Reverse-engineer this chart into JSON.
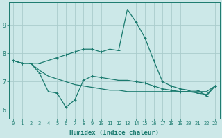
{
  "xlabel": "Humidex (Indice chaleur)",
  "bg_color": "#cce8e8",
  "grid_color": "#aacccc",
  "line_color": "#1a7a6e",
  "xlim": [
    -0.5,
    23.5
  ],
  "ylim": [
    5.7,
    9.8
  ],
  "xticks": [
    0,
    1,
    2,
    3,
    4,
    5,
    6,
    7,
    8,
    9,
    10,
    11,
    12,
    13,
    14,
    15,
    16,
    17,
    18,
    19,
    20,
    21,
    22,
    23
  ],
  "yticks": [
    6,
    7,
    8,
    9
  ],
  "x": [
    0,
    1,
    2,
    3,
    4,
    5,
    6,
    7,
    8,
    9,
    10,
    11,
    12,
    13,
    14,
    15,
    16,
    17,
    18,
    19,
    20,
    21,
    22,
    23
  ],
  "line_peak": [
    7.75,
    7.65,
    7.65,
    7.65,
    7.75,
    7.85,
    7.95,
    8.05,
    8.15,
    8.15,
    8.05,
    8.15,
    8.1,
    9.55,
    9.1,
    8.55,
    7.75,
    7.0,
    6.85,
    6.75,
    6.7,
    6.7,
    6.5,
    6.85
  ],
  "line_valley": [
    7.75,
    7.65,
    7.65,
    7.3,
    6.65,
    6.6,
    6.1,
    6.35,
    7.05,
    7.2,
    7.15,
    7.1,
    7.05,
    7.05,
    7.0,
    6.95,
    6.85,
    6.75,
    6.7,
    6.65,
    6.65,
    6.6,
    6.55,
    6.85
  ],
  "line_straight": [
    7.75,
    7.65,
    7.65,
    7.4,
    7.2,
    7.1,
    7.0,
    6.9,
    6.85,
    6.8,
    6.75,
    6.7,
    6.7,
    6.65,
    6.65,
    6.65,
    6.65,
    6.65,
    6.65,
    6.65,
    6.65,
    6.65,
    6.65,
    6.85
  ]
}
